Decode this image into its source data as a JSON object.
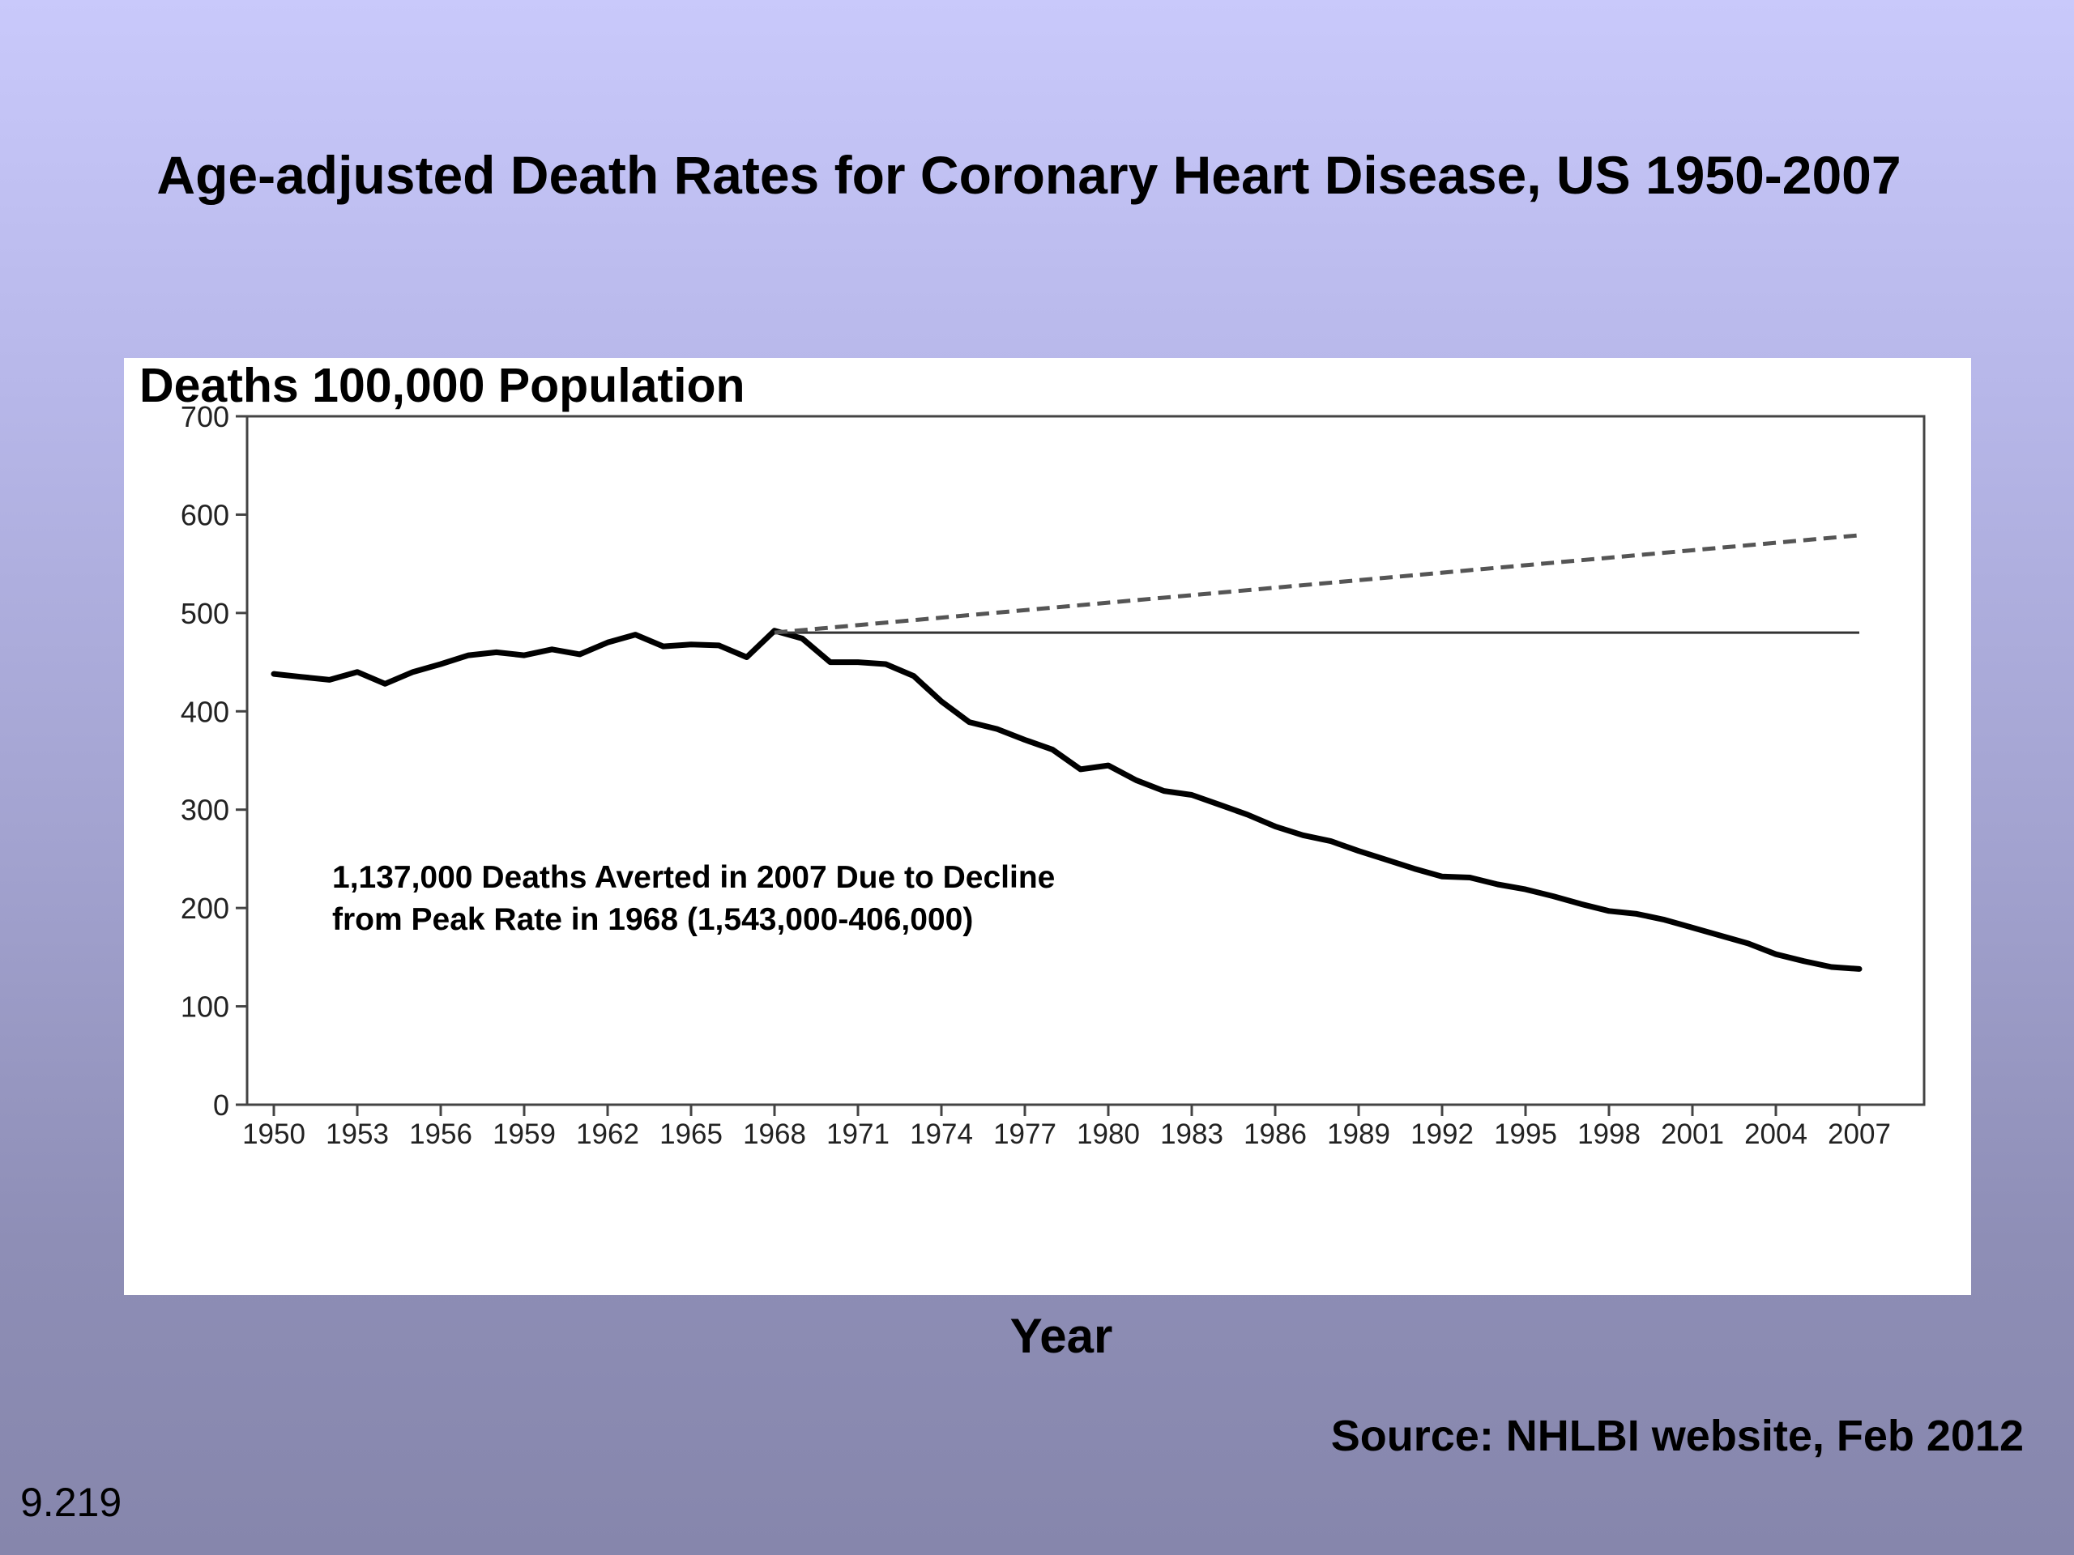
{
  "slide": {
    "title": "Age-adjusted Death Rates for Coronary Heart Disease, US 1950-2007",
    "source": "Source:  NHLBI website, Feb 2012",
    "slide_number": "9.219"
  },
  "chart_data": {
    "type": "line",
    "title": "",
    "ylabel": "Deaths 100,000 Population",
    "xlabel": "Year",
    "xlim": [
      1950,
      2007
    ],
    "ylim": [
      0,
      700
    ],
    "y_ticks": [
      "0",
      "100",
      "200",
      "300",
      "400",
      "500",
      "600",
      "700"
    ],
    "x_ticks": [
      "1950",
      "1953",
      "1956",
      "1959",
      "1962",
      "1965",
      "1968",
      "1971",
      "1974",
      "1977",
      "1980",
      "1983",
      "1986",
      "1989",
      "1992",
      "1995",
      "1998",
      "2001",
      "2004",
      "2007"
    ],
    "annotation": [
      "1,137,000 Deaths Averted in 2007 Due to Decline",
      "from Peak Rate in 1968 (1,543,000-406,000)"
    ],
    "series": [
      {
        "style": "solid-thick",
        "points": [
          [
            1950,
            438
          ],
          [
            1951,
            435
          ],
          [
            1952,
            432
          ],
          [
            1953,
            440
          ],
          [
            1954,
            428
          ],
          [
            1955,
            440
          ],
          [
            1956,
            448
          ],
          [
            1957,
            457
          ],
          [
            1958,
            460
          ],
          [
            1959,
            457
          ],
          [
            1960,
            463
          ],
          [
            1961,
            458
          ],
          [
            1962,
            470
          ],
          [
            1963,
            478
          ],
          [
            1964,
            466
          ],
          [
            1965,
            468
          ],
          [
            1966,
            467
          ],
          [
            1967,
            455
          ],
          [
            1968,
            482
          ],
          [
            1969,
            474
          ],
          [
            1970,
            450
          ],
          [
            1971,
            450
          ],
          [
            1972,
            448
          ],
          [
            1973,
            436
          ],
          [
            1974,
            410
          ],
          [
            1975,
            389
          ],
          [
            1976,
            382
          ],
          [
            1977,
            371
          ],
          [
            1978,
            361
          ],
          [
            1979,
            341
          ],
          [
            1980,
            345
          ],
          [
            1981,
            330
          ],
          [
            1982,
            319
          ],
          [
            1983,
            315
          ],
          [
            1984,
            305
          ],
          [
            1985,
            295
          ],
          [
            1986,
            283
          ],
          [
            1987,
            274
          ],
          [
            1988,
            268
          ],
          [
            1989,
            258
          ],
          [
            1990,
            249
          ],
          [
            1991,
            240
          ],
          [
            1992,
            232
          ],
          [
            1993,
            231
          ],
          [
            1994,
            224
          ],
          [
            1995,
            219
          ],
          [
            1996,
            212
          ],
          [
            1997,
            204
          ],
          [
            1998,
            197
          ],
          [
            1999,
            194
          ],
          [
            2000,
            188
          ],
          [
            2001,
            180
          ],
          [
            2002,
            172
          ],
          [
            2003,
            164
          ],
          [
            2004,
            153
          ],
          [
            2005,
            146
          ],
          [
            2006,
            140
          ],
          [
            2007,
            138
          ]
        ]
      },
      {
        "style": "solid-thin",
        "points": [
          [
            1968,
            480
          ],
          [
            2007,
            480
          ]
        ]
      },
      {
        "style": "dashed",
        "points": [
          [
            1968,
            480
          ],
          [
            2007,
            579
          ]
        ]
      }
    ]
  }
}
